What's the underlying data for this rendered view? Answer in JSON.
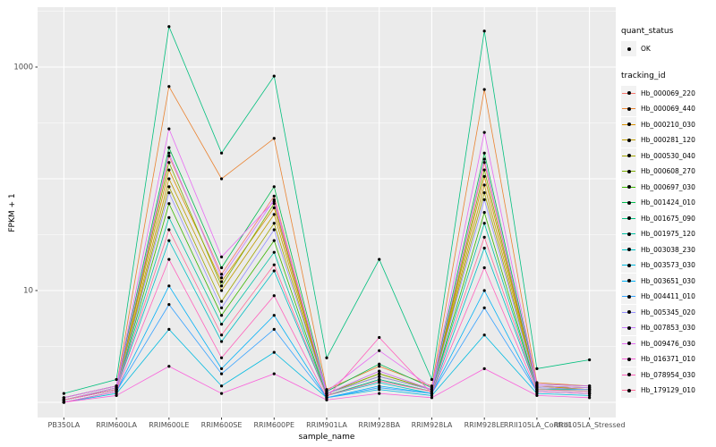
{
  "figure": {
    "background": "#FFFFFF",
    "panel_background": "#EBEBEB",
    "grid_major_color": "#FFFFFF",
    "grid_minor_color": "#FFFFFF",
    "tick_label_color": "#4D4D4D",
    "axis_title_color": "#000000",
    "point_color": "#000000"
  },
  "legend": {
    "quant_status_title": "quant_status",
    "quant_status_items": [
      {
        "label": "OK",
        "shape": "solid-point"
      }
    ],
    "tracking_id_title": "tracking_id"
  },
  "chart_data": {
    "type": "line",
    "title": "",
    "xlabel": "sample_name",
    "ylabel": "FPKM + 1",
    "y_scale": "log10",
    "y_tick_labels": [
      "1000",
      "10"
    ],
    "y_tick_values": [
      1000,
      10
    ],
    "y_log_range": [
      -0.136,
      3.536
    ],
    "grid": true,
    "legend_position": "right",
    "categories": [
      "PB350LA",
      "RRIM600LA",
      "RRIM600LE",
      "RRIM600SE",
      "RRIM600PE",
      "RRIM901LA",
      "RRIM928BA",
      "RRIM928LA",
      "RRIM928LE",
      "RRII105LA_Control",
      "RRII105LA_Stressed"
    ],
    "series": [
      {
        "name": "Hb_000069_220",
        "color": "#F8766D",
        "values": [
          1.05,
          1.3,
          160,
          14,
          70,
          1.2,
          1.9,
          1.3,
          140,
          1.4,
          1.3
        ]
      },
      {
        "name": "Hb_000069_440",
        "color": "#EA8331",
        "values": [
          1.1,
          1.4,
          670,
          100,
          230,
          1.3,
          2.1,
          1.4,
          630,
          1.5,
          1.4
        ]
      },
      {
        "name": "Hb_000210_030",
        "color": "#D89000",
        "values": [
          1.05,
          1.35,
          120,
          12,
          55,
          1.2,
          1.8,
          1.3,
          105,
          1.4,
          1.35
        ]
      },
      {
        "name": "Hb_000281_120",
        "color": "#C09B00",
        "values": [
          1.05,
          1.3,
          100,
          10,
          48,
          1.2,
          1.7,
          1.3,
          88,
          1.4,
          1.3
        ]
      },
      {
        "name": "Hb_000530_040",
        "color": "#A3A500",
        "values": [
          1.05,
          1.3,
          85,
          8,
          40,
          1.2,
          1.7,
          1.3,
          75,
          1.35,
          1.3
        ]
      },
      {
        "name": "Hb_000608_270",
        "color": "#7CAE00",
        "values": [
          1.05,
          1.35,
          140,
          11,
          60,
          1.2,
          1.8,
          1.3,
          120,
          1.4,
          1.35
        ]
      },
      {
        "name": "Hb_000697_030",
        "color": "#39B600",
        "values": [
          1.05,
          1.3,
          60,
          6,
          28,
          1.15,
          1.6,
          1.25,
          50,
          1.3,
          1.3
        ]
      },
      {
        "name": "Hb_001424_010",
        "color": "#00BB4E",
        "values": [
          1.1,
          1.4,
          190,
          16,
          85,
          1.25,
          2.2,
          1.35,
          170,
          1.45,
          1.4
        ]
      },
      {
        "name": "Hb_001675_090",
        "color": "#00BF7D",
        "values": [
          1.2,
          1.6,
          2300,
          170,
          830,
          2.5,
          19,
          1.6,
          2100,
          2.0,
          2.4
        ]
      },
      {
        "name": "Hb_001975_120",
        "color": "#00C1A3",
        "values": [
          1.05,
          1.3,
          45,
          5,
          22,
          1.15,
          1.6,
          1.25,
          40,
          1.3,
          1.3
        ]
      },
      {
        "name": "Hb_003038_230",
        "color": "#00BFC4",
        "values": [
          1.05,
          1.3,
          28,
          3.5,
          15,
          1.15,
          1.5,
          1.2,
          24,
          1.3,
          1.25
        ]
      },
      {
        "name": "Hb_003573_030",
        "color": "#00BAE0",
        "values": [
          1.0,
          1.2,
          4.5,
          1.4,
          2.8,
          1.1,
          1.3,
          1.15,
          4.0,
          1.2,
          1.15
        ]
      },
      {
        "name": "Hb_003651_030",
        "color": "#00B0F6",
        "values": [
          1.0,
          1.25,
          11,
          2.0,
          6,
          1.1,
          1.4,
          1.2,
          10,
          1.25,
          1.2
        ]
      },
      {
        "name": "Hb_004411_010",
        "color": "#35A2FF",
        "values": [
          1.0,
          1.25,
          7.5,
          1.8,
          4.5,
          1.1,
          1.35,
          1.2,
          7,
          1.25,
          1.2
        ]
      },
      {
        "name": "Hb_005345_020",
        "color": "#9590FF",
        "values": [
          1.05,
          1.3,
          75,
          7,
          35,
          1.2,
          1.7,
          1.3,
          65,
          1.35,
          1.3
        ]
      },
      {
        "name": "Hb_007853_030",
        "color": "#C77CFF",
        "values": [
          1.05,
          1.35,
          170,
          13,
          65,
          1.2,
          1.9,
          1.3,
          150,
          1.4,
          1.35
        ]
      },
      {
        "name": "Hb_009476_030",
        "color": "#E76BF3",
        "values": [
          1.1,
          1.4,
          280,
          20,
          63,
          1.25,
          2.9,
          1.35,
          260,
          1.45,
          1.4
        ]
      },
      {
        "name": "Hb_016371_010",
        "color": "#FA62DB",
        "values": [
          1.0,
          1.15,
          2.1,
          1.2,
          1.8,
          1.05,
          1.2,
          1.1,
          2.0,
          1.15,
          1.1
        ]
      },
      {
        "name": "Hb_078954_030",
        "color": "#FF62BC",
        "values": [
          1.0,
          1.25,
          19,
          2.5,
          9,
          1.1,
          3.8,
          1.2,
          16,
          1.25,
          1.2
        ]
      },
      {
        "name": "Hb_179129_010",
        "color": "#FF6A98",
        "values": [
          1.05,
          1.3,
          35,
          4,
          17,
          1.15,
          1.55,
          1.25,
          30,
          1.3,
          1.25
        ]
      }
    ]
  }
}
